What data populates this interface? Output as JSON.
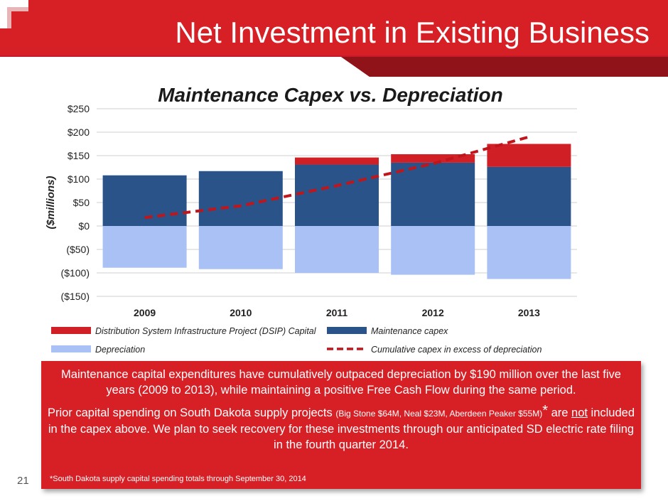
{
  "header": {
    "title": "Net Investment in Existing Business",
    "page_number": "21",
    "colors": {
      "band": "#d71f26",
      "band_dark": "#a8161c"
    }
  },
  "chart_data": {
    "type": "bar",
    "stacked": true,
    "title": "Maintenance Capex vs. Depreciation",
    "ylabel": "($millions)",
    "xlabel": "",
    "categories": [
      "2009",
      "2010",
      "2011",
      "2012",
      "2013"
    ],
    "ylim": [
      -150,
      250
    ],
    "yticks": [
      250,
      200,
      150,
      100,
      50,
      0,
      -50,
      -100,
      -150
    ],
    "ytick_labels": [
      "$250",
      "$200",
      "$150",
      "$100",
      "$50",
      "$0",
      "($50)",
      "($100)",
      "($150)"
    ],
    "grid": true,
    "legend_position": "bottom",
    "series": [
      {
        "name": "Maintenance capex",
        "kind": "bar",
        "color": "#2a5389",
        "values": [
          108,
          117,
          131,
          135,
          126
        ]
      },
      {
        "name": "Distribution System Infrastructure Project (DSIP) Capital",
        "kind": "bar",
        "color": "#d11f26",
        "values": [
          0,
          0,
          15,
          18,
          49
        ]
      },
      {
        "name": "Depreciation",
        "kind": "bar",
        "color": "#a9c1f5",
        "values": [
          -89,
          -92,
          -100,
          -104,
          -113
        ]
      },
      {
        "name": "Cumulative capex in excess of depreciation",
        "kind": "line",
        "style": "dashed",
        "color": "#c0151b",
        "values": [
          18,
          43,
          86,
          133,
          190
        ]
      }
    ],
    "legend": [
      {
        "label": "Distribution System Infrastructure Project (DSIP) Capital",
        "marker": "bar",
        "color": "#d11f26"
      },
      {
        "label": "Maintenance capex",
        "marker": "bar",
        "color": "#2a5389"
      },
      {
        "label": "Depreciation",
        "marker": "bar",
        "color": "#a9c1f5"
      },
      {
        "label": "Cumulative capex in excess of depreciation",
        "marker": "dash",
        "color": "#c0151b"
      }
    ]
  },
  "callout": {
    "p1": "Maintenance capital expenditures have cumulatively outpaced depreciation by $190 million over the last five years (2009 to 2013), while maintaining a positive Free Cash Flow during the same period.",
    "p2_a": "Prior capital spending on South Dakota supply projects ",
    "p2_small": "(Big Stone $64M, Neal $23M, Aberdeen Peaker $55M)",
    "p2_star": "*",
    "p2_b": " are ",
    "p2_not": "not",
    "p2_c": " included in the capex above.  We plan to seek recovery for these investments through our anticipated SD electric rate filing in the fourth quarter 2014.",
    "footnote": "*South Dakota supply capital spending totals through September 30, 2014"
  }
}
